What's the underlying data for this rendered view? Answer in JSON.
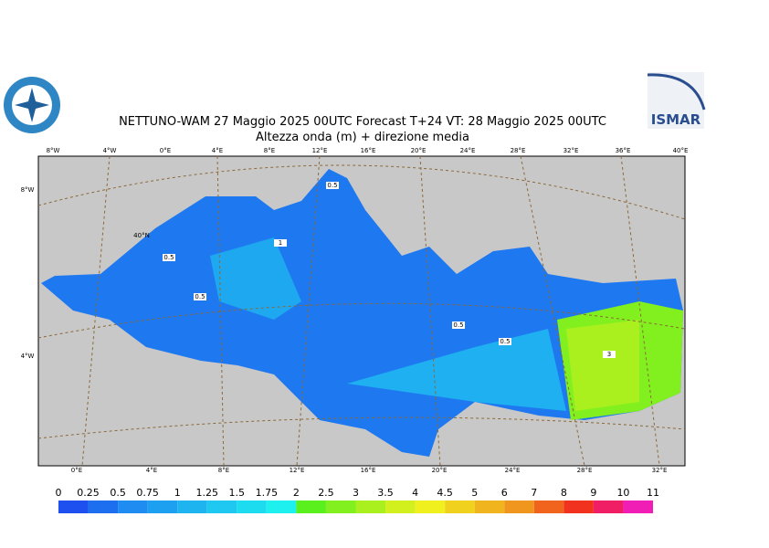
{
  "header": {
    "title": "NETTUNO-WAM  27   Maggio  2025 00UTC Forecast T+24 VT: 28   Maggio  2025 00UTC",
    "subtitle": "Altezza onda (m) + direzione media",
    "logo_right": "ISMAR"
  },
  "map": {
    "top_labels": [
      "8°W",
      "4°W",
      "0°E",
      "4°E",
      "8°E",
      "12°E",
      "16°E",
      "20°E",
      "24°E",
      "28°E",
      "32°E",
      "36°E",
      "40°E"
    ],
    "bottom_labels": [
      "0°E",
      "4°E",
      "8°E",
      "12°E",
      "16°E",
      "20°E",
      "24°E",
      "28°E",
      "32°E"
    ],
    "left_labels": [
      "8°W",
      "40°N",
      "4°W"
    ],
    "contour_labels": [
      "0.5",
      "0.5",
      "0.5",
      "0.5",
      "0.5",
      "1",
      "3"
    ]
  },
  "colorbar": {
    "levels": [
      0,
      0.25,
      0.5,
      0.75,
      1,
      1.25,
      1.5,
      1.75,
      2,
      2.5,
      3,
      3.5,
      4,
      4.5,
      5,
      6,
      7,
      8,
      9,
      10,
      11
    ],
    "colors": [
      "#1e50f0",
      "#1e6ef0",
      "#1e8cf0",
      "#1ea0f0",
      "#1eb4f0",
      "#1ec8f0",
      "#1edcf0",
      "#1ef0f0",
      "#5af01e",
      "#82f01e",
      "#aaf01e",
      "#d2f01e",
      "#f0f01e",
      "#f0d21e",
      "#f0b41e",
      "#f0961e",
      "#f0641e",
      "#f0321e",
      "#f01e64",
      "#f01eb4"
    ]
  }
}
